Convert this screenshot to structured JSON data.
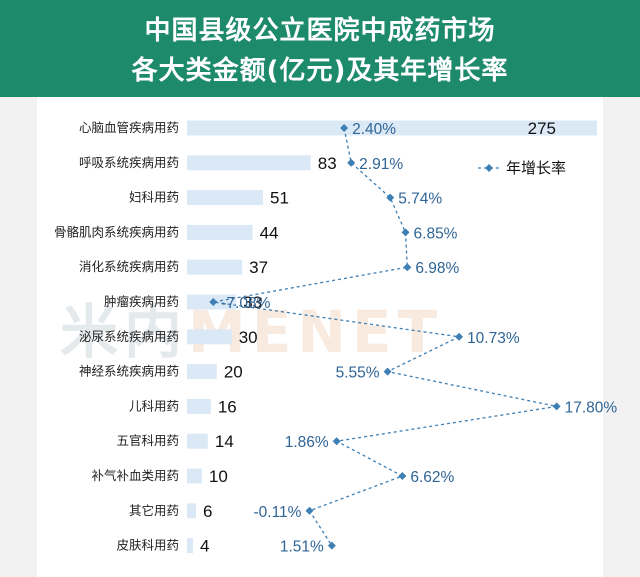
{
  "title": {
    "line1": "中国县级公立医院中成药市场",
    "line2": "各大类金额(亿元)及其年增长率"
  },
  "watermark": {
    "cn": "米内",
    "en": "MENET"
  },
  "legend": {
    "label": "年增长率"
  },
  "colors": {
    "header": "#1e8a6c",
    "bar": "#dbe9f7",
    "growth_line": "#3e7fb4",
    "growth_text": "#2f6496"
  },
  "chart_data": {
    "type": "bar",
    "orientation": "horizontal",
    "categories": [
      "心脑血管疾病用药",
      "呼吸系统疾病用药",
      "妇科用药",
      "骨骼肌肉系统疾病用药",
      "消化系统疾病用药",
      "肿瘤疾病用药",
      "泌尿系统疾病用药",
      "神经系统疾病用药",
      "儿科用药",
      "五官科用药",
      "补气补血类用药",
      "其它用药",
      "皮肤科用药"
    ],
    "values": [
      275,
      83,
      51,
      44,
      37,
      33,
      30,
      20,
      16,
      14,
      10,
      6,
      4
    ],
    "value_labels": [
      "275",
      "83",
      "51",
      "44",
      "37",
      "33",
      "30",
      "20",
      "16",
      "14",
      "10",
      "6",
      "4"
    ],
    "growth": [
      2.4,
      2.91,
      5.74,
      6.85,
      6.98,
      -7.08,
      10.73,
      5.55,
      17.8,
      1.86,
      6.62,
      -0.11,
      1.51
    ],
    "growth_labels": [
      "2.40%",
      "2.91%",
      "5.74%",
      "6.85%",
      "6.98%",
      "-7.08%",
      "10.73%",
      "5.55%",
      "17.80%",
      "1.86%",
      "6.62%",
      "-0.11%",
      "1.51%"
    ],
    "series": [
      {
        "name": "",
        "kind": "bar"
      },
      {
        "name": "年增长率",
        "kind": "line",
        "marker": "diamond",
        "line_style": "dashed"
      }
    ],
    "grid": false,
    "legend_position": "top-right"
  }
}
